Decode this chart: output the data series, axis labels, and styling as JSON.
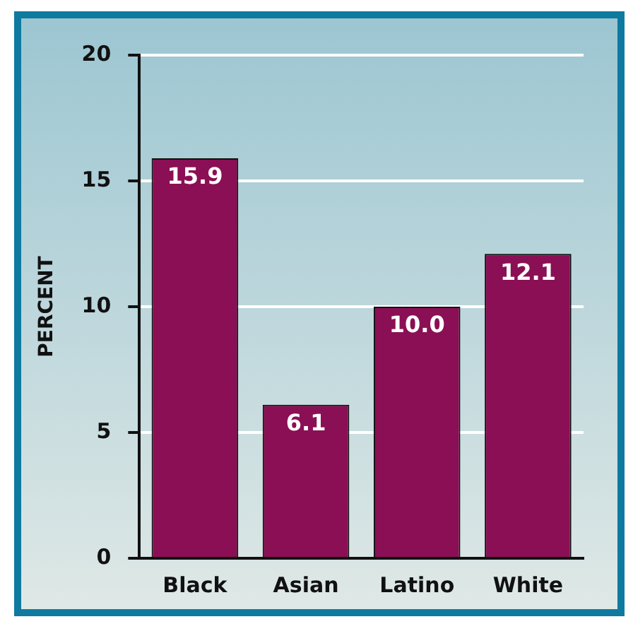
{
  "chart_data": {
    "type": "bar",
    "ylabel": "PERCENT",
    "categories": [
      "Black",
      "Asian",
      "Latino",
      "White"
    ],
    "values": [
      15.9,
      6.1,
      10.0,
      12.1
    ],
    "value_labels": [
      "15.9",
      "6.1",
      "10.0",
      "12.1"
    ],
    "color": "#8b0f55",
    "ylim": [
      0,
      20
    ],
    "yticks": [
      0,
      5,
      10,
      15,
      20
    ],
    "grid": "y",
    "legend": false
  }
}
